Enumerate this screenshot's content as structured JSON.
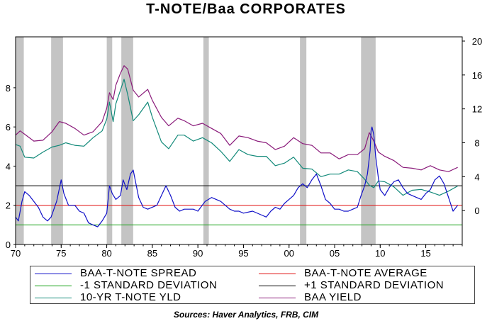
{
  "chart_data": {
    "type": "line",
    "title": "T-NOTE/Baa CORPORATES",
    "source": "Sources:  Haver Analytics, FRB, CIM",
    "x_ticks": [
      "70",
      "75",
      "80",
      "85",
      "90",
      "95",
      "00",
      "05",
      "10",
      "15"
    ],
    "x_range": [
      1970,
      2019
    ],
    "left_axis": {
      "ticks": [
        "0",
        "2",
        "4",
        "6",
        "8"
      ],
      "range": [
        0,
        10.6
      ]
    },
    "right_axis": {
      "ticks": [
        "0",
        "4",
        "8",
        "12",
        "16",
        "20"
      ],
      "range": [
        -4,
        20.5
      ]
    },
    "recessions": [
      [
        1970.0,
        1970.9
      ],
      [
        1973.9,
        1975.2
      ],
      [
        1980.0,
        1980.6
      ],
      [
        1981.6,
        1982.9
      ],
      [
        1990.6,
        1991.2
      ],
      [
        2001.2,
        2001.9
      ],
      [
        2007.9,
        2009.5
      ]
    ],
    "reference_lines": [
      {
        "name": "BAA-T-NOTE AVERAGE",
        "value": 2.0,
        "color": "#e01010"
      },
      {
        "name": "-1 STANDARD DEVIATION",
        "value": 1.0,
        "color": "#10a010"
      },
      {
        "name": "+1 STANDARD DEVIATION",
        "value": 3.0,
        "color": "#000000"
      }
    ],
    "series": [
      {
        "name": "BAA YIELD",
        "axis": "right",
        "color": "#8a1a7a",
        "x": [
          1970.0,
          1970.5,
          1971.0,
          1972.0,
          1973.0,
          1974.0,
          1974.8,
          1975.5,
          1976.5,
          1977.5,
          1978.5,
          1979.5,
          1980.0,
          1980.3,
          1980.7,
          1981.0,
          1981.5,
          1981.9,
          1982.3,
          1982.9,
          1983.5,
          1984.5,
          1985.0,
          1986.0,
          1986.8,
          1987.8,
          1988.5,
          1989.5,
          1990.5,
          1991.5,
          1992.5,
          1993.5,
          1994.5,
          1995.5,
          1996.5,
          1997.5,
          1998.5,
          1999.5,
          2000.5,
          2001.5,
          2002.5,
          2003.5,
          2004.5,
          2005.5,
          2006.5,
          2007.5,
          2008.3,
          2008.8,
          2009.3,
          2009.8,
          2010.5,
          2011.5,
          2012.5,
          2013.5,
          2014.5,
          2015.5,
          2016.5,
          2017.5,
          2018.5
        ],
        "y": [
          8.9,
          9.4,
          9.0,
          8.2,
          8.3,
          9.3,
          10.5,
          10.3,
          9.7,
          8.9,
          9.3,
          10.5,
          12.1,
          13.9,
          13.1,
          14.8,
          16.2,
          17.1,
          16.7,
          14.2,
          13.4,
          14.3,
          13.0,
          11.0,
          10.0,
          10.9,
          10.6,
          10.0,
          10.3,
          9.7,
          9.1,
          7.7,
          8.8,
          8.6,
          8.2,
          8.0,
          7.2,
          7.6,
          8.6,
          7.9,
          7.7,
          6.8,
          6.8,
          6.1,
          6.6,
          6.6,
          7.3,
          9.2,
          8.2,
          6.9,
          6.4,
          5.9,
          5.1,
          5.0,
          4.8,
          5.3,
          4.8,
          4.6,
          5.1
        ]
      },
      {
        "name": "10-YR T-NOTE YLD",
        "axis": "right",
        "color": "#138a7a",
        "x": [
          1970.0,
          1970.5,
          1971.0,
          1972.0,
          1973.0,
          1974.0,
          1974.8,
          1975.5,
          1976.5,
          1977.5,
          1978.5,
          1979.5,
          1980.0,
          1980.3,
          1980.7,
          1981.0,
          1981.5,
          1981.9,
          1982.3,
          1982.9,
          1983.5,
          1984.5,
          1985.0,
          1986.0,
          1986.8,
          1987.8,
          1988.5,
          1989.5,
          1990.5,
          1991.5,
          1992.5,
          1993.5,
          1994.5,
          1995.5,
          1996.5,
          1997.5,
          1998.5,
          1999.5,
          2000.5,
          2001.5,
          2002.5,
          2003.5,
          2004.5,
          2005.5,
          2006.5,
          2007.5,
          2008.3,
          2008.8,
          2009.3,
          2009.8,
          2010.5,
          2011.5,
          2012.5,
          2013.5,
          2014.5,
          2015.5,
          2016.5,
          2017.5,
          2018.5
        ],
        "y": [
          7.8,
          7.6,
          6.3,
          6.2,
          6.9,
          7.5,
          7.7,
          8.0,
          7.7,
          7.6,
          8.6,
          9.4,
          10.8,
          12.8,
          10.5,
          12.6,
          14.2,
          15.5,
          13.7,
          10.6,
          11.3,
          12.8,
          11.0,
          8.1,
          7.3,
          8.9,
          8.9,
          8.2,
          8.6,
          8.0,
          7.0,
          5.8,
          7.2,
          6.6,
          6.4,
          6.4,
          5.3,
          5.6,
          6.3,
          5.0,
          4.9,
          4.0,
          4.3,
          4.3,
          4.8,
          4.6,
          3.7,
          3.0,
          2.7,
          3.5,
          3.4,
          2.8,
          1.8,
          2.4,
          2.5,
          2.2,
          1.8,
          2.3,
          2.9
        ]
      },
      {
        "name": "BAA-T-NOTE SPREAD",
        "axis": "left",
        "color": "#1010c8",
        "x": [
          1970.0,
          1970.3,
          1970.7,
          1971.0,
          1971.5,
          1972.0,
          1972.5,
          1973.0,
          1973.5,
          1973.9,
          1974.5,
          1975.0,
          1975.3,
          1975.8,
          1976.5,
          1977.0,
          1977.5,
          1978.0,
          1978.5,
          1979.0,
          1979.5,
          1980.0,
          1980.3,
          1980.6,
          1981.0,
          1981.5,
          1981.8,
          1982.2,
          1982.6,
          1982.9,
          1983.5,
          1984.0,
          1984.5,
          1985.5,
          1986.0,
          1986.5,
          1987.0,
          1987.5,
          1988.0,
          1988.5,
          1989.0,
          1989.5,
          1990.0,
          1990.8,
          1991.5,
          1992.0,
          1992.5,
          1993.0,
          1993.5,
          1994.0,
          1994.5,
          1995.0,
          1996.0,
          1997.0,
          1997.5,
          1998.0,
          1998.5,
          1999.0,
          1999.5,
          2000.0,
          2000.5,
          2001.0,
          2001.5,
          2002.0,
          2002.5,
          2003.0,
          2003.5,
          2004.0,
          2004.5,
          2005.0,
          2005.5,
          2006.0,
          2006.5,
          2007.0,
          2007.5,
          2007.9,
          2008.3,
          2008.6,
          2008.9,
          2009.0,
          2009.1,
          2009.3,
          2009.5,
          2009.8,
          2010.0,
          2010.5,
          2011.0,
          2011.5,
          2012.0,
          2012.5,
          2013.0,
          2013.5,
          2014.0,
          2014.5,
          2015.0,
          2015.5,
          2016.0,
          2016.5,
          2017.0,
          2017.5,
          2018.0,
          2018.5
        ],
        "y": [
          1.4,
          1.2,
          2.2,
          2.7,
          2.5,
          2.2,
          1.9,
          1.4,
          1.2,
          1.4,
          2.2,
          3.3,
          2.6,
          2.0,
          2.0,
          1.7,
          1.6,
          1.1,
          1.0,
          0.9,
          1.2,
          1.6,
          3.0,
          2.6,
          2.3,
          2.5,
          3.3,
          2.8,
          3.6,
          3.8,
          2.4,
          1.9,
          1.8,
          2.0,
          2.5,
          3.0,
          2.5,
          1.9,
          1.7,
          1.8,
          1.8,
          1.8,
          1.7,
          2.2,
          2.4,
          2.3,
          2.2,
          2.0,
          1.8,
          1.7,
          1.7,
          1.6,
          1.7,
          1.5,
          1.4,
          1.7,
          1.9,
          1.8,
          2.1,
          2.3,
          2.5,
          2.9,
          3.1,
          2.9,
          3.3,
          3.6,
          3.0,
          2.3,
          2.1,
          1.8,
          1.8,
          1.7,
          1.7,
          1.8,
          1.9,
          2.5,
          3.0,
          3.6,
          4.8,
          5.8,
          6.0,
          5.6,
          4.5,
          3.4,
          2.8,
          2.5,
          2.9,
          3.2,
          3.3,
          2.9,
          2.6,
          2.5,
          2.4,
          2.3,
          2.6,
          2.8,
          3.3,
          3.5,
          3.1,
          2.4,
          1.7,
          2.0
        ]
      }
    ]
  },
  "legend": [
    {
      "label": "BAA-T-NOTE SPREAD",
      "color": "#1010c8"
    },
    {
      "label": "BAA-T-NOTE AVERAGE",
      "color": "#e01010"
    },
    {
      "label": "-1 STANDARD DEVIATION",
      "color": "#10a010"
    },
    {
      "label": "+1 STANDARD DEVIATION",
      "color": "#000000"
    },
    {
      "label": "10-YR T-NOTE YLD",
      "color": "#138a7a"
    },
    {
      "label": "BAA YIELD",
      "color": "#8a1a7a"
    }
  ]
}
